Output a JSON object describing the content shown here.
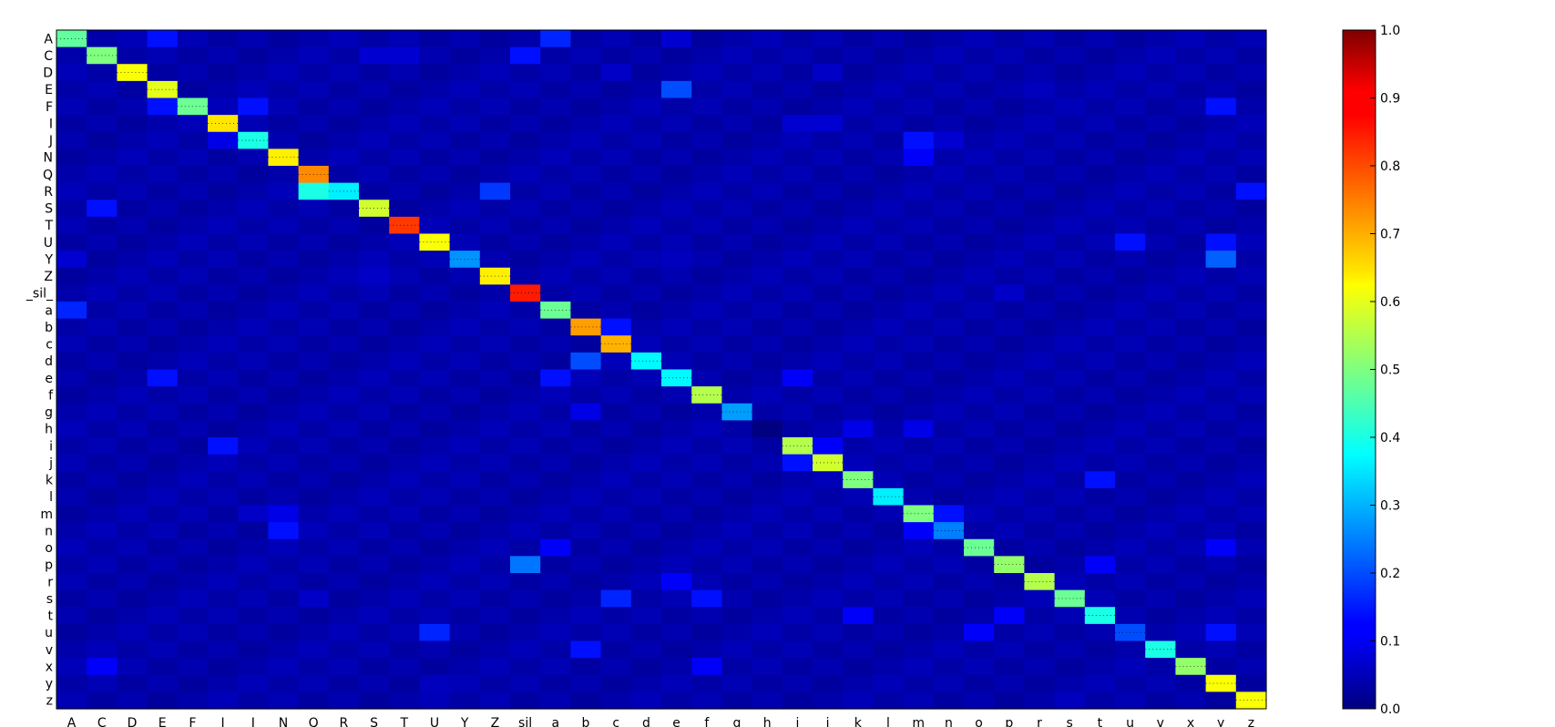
{
  "chart_data": {
    "type": "heatmap",
    "title": "",
    "xlabel": "",
    "ylabel": "",
    "labels": [
      "A",
      "C",
      "D",
      "E",
      "F",
      "I",
      "J",
      "N",
      "Q",
      "R",
      "S",
      "T",
      "U",
      "Y",
      "Z",
      "_sil_",
      "a",
      "b",
      "c",
      "d",
      "e",
      "f",
      "g",
      "h",
      "i",
      "j",
      "k",
      "l",
      "m",
      "n",
      "o",
      "p",
      "r",
      "s",
      "t",
      "u",
      "v",
      "x",
      "y",
      "z"
    ],
    "x_labels": [
      "A",
      "C",
      "D",
      "E",
      "F",
      "I",
      "J",
      "N",
      "Q",
      "R",
      "S",
      "T",
      "U",
      "Y",
      "Z",
      "_sil_",
      "a",
      "b",
      "c",
      "d",
      "e",
      "f",
      "g",
      "h",
      "i",
      "j",
      "k",
      "l",
      "m",
      "n",
      "o",
      "p",
      "r",
      "s",
      "t",
      "u",
      "v",
      "x",
      "y",
      "z"
    ],
    "diagonal": [
      0.47,
      0.5,
      0.62,
      0.6,
      0.48,
      0.65,
      0.4,
      0.64,
      0.74,
      0.36,
      0.58,
      0.82,
      0.62,
      0.27,
      0.64,
      0.85,
      0.48,
      0.72,
      0.7,
      0.37,
      0.37,
      0.55,
      0.28,
      0.0,
      0.55,
      0.58,
      0.5,
      0.36,
      0.5,
      0.25,
      0.48,
      0.52,
      0.55,
      0.48,
      0.4,
      0.2,
      0.4,
      0.52,
      0.62,
      0.62
    ],
    "off_diagonal": [
      {
        "row": "A",
        "col": "E",
        "value": 0.14
      },
      {
        "row": "A",
        "col": "a",
        "value": 0.16
      },
      {
        "row": "A",
        "col": "e",
        "value": 0.08
      },
      {
        "row": "C",
        "col": "_sil_",
        "value": 0.14
      },
      {
        "row": "C",
        "col": "S",
        "value": 0.08
      },
      {
        "row": "C",
        "col": "T",
        "value": 0.08
      },
      {
        "row": "D",
        "col": "c",
        "value": 0.07
      },
      {
        "row": "D",
        "col": "j",
        "value": 0.07
      },
      {
        "row": "E",
        "col": "e",
        "value": 0.2
      },
      {
        "row": "E",
        "col": "r",
        "value": 0.06
      },
      {
        "row": "F",
        "col": "E",
        "value": 0.14
      },
      {
        "row": "F",
        "col": "J",
        "value": 0.14
      },
      {
        "row": "F",
        "col": "y",
        "value": 0.14
      },
      {
        "row": "I",
        "col": "i",
        "value": 0.08
      },
      {
        "row": "I",
        "col": "j",
        "value": 0.08
      },
      {
        "row": "J",
        "col": "I",
        "value": 0.1
      },
      {
        "row": "J",
        "col": "m",
        "value": 0.14
      },
      {
        "row": "J",
        "col": "n",
        "value": 0.08
      },
      {
        "row": "N",
        "col": "m",
        "value": 0.12
      },
      {
        "row": "R",
        "col": "Q",
        "value": 0.4
      },
      {
        "row": "R",
        "col": "Z",
        "value": 0.18
      },
      {
        "row": "R",
        "col": "z",
        "value": 0.14
      },
      {
        "row": "S",
        "col": "C",
        "value": 0.14
      },
      {
        "row": "U",
        "col": "u",
        "value": 0.14
      },
      {
        "row": "U",
        "col": "y",
        "value": 0.14
      },
      {
        "row": "Y",
        "col": "A",
        "value": 0.08
      },
      {
        "row": "Y",
        "col": "e",
        "value": 0.06
      },
      {
        "row": "Y",
        "col": "y",
        "value": 0.22
      },
      {
        "row": "Z",
        "col": "S",
        "value": 0.07
      },
      {
        "row": "_sil_",
        "col": "p",
        "value": 0.07
      },
      {
        "row": "a",
        "col": "A",
        "value": 0.16
      },
      {
        "row": "b",
        "col": "c",
        "value": 0.14
      },
      {
        "row": "d",
        "col": "b",
        "value": 0.2
      },
      {
        "row": "e",
        "col": "E",
        "value": 0.14
      },
      {
        "row": "e",
        "col": "a",
        "value": 0.14
      },
      {
        "row": "e",
        "col": "i",
        "value": 0.12
      },
      {
        "row": "g",
        "col": "b",
        "value": 0.1
      },
      {
        "row": "h",
        "col": "k",
        "value": 0.1
      },
      {
        "row": "h",
        "col": "m",
        "value": 0.1
      },
      {
        "row": "i",
        "col": "I",
        "value": 0.14
      },
      {
        "row": "i",
        "col": "j",
        "value": 0.12
      },
      {
        "row": "j",
        "col": "i",
        "value": 0.14
      },
      {
        "row": "k",
        "col": "t",
        "value": 0.14
      },
      {
        "row": "m",
        "col": "n",
        "value": 0.14
      },
      {
        "row": "m",
        "col": "N",
        "value": 0.1
      },
      {
        "row": "m",
        "col": "J",
        "value": 0.07
      },
      {
        "row": "n",
        "col": "m",
        "value": 0.12
      },
      {
        "row": "n",
        "col": "N",
        "value": 0.14
      },
      {
        "row": "o",
        "col": "a",
        "value": 0.12
      },
      {
        "row": "o",
        "col": "y",
        "value": 0.12
      },
      {
        "row": "p",
        "col": "_sil_",
        "value": 0.24
      },
      {
        "row": "p",
        "col": "t",
        "value": 0.12
      },
      {
        "row": "r",
        "col": "e",
        "value": 0.12
      },
      {
        "row": "s",
        "col": "c",
        "value": 0.16
      },
      {
        "row": "s",
        "col": "f",
        "value": 0.14
      },
      {
        "row": "s",
        "col": "Q",
        "value": 0.07
      },
      {
        "row": "t",
        "col": "k",
        "value": 0.12
      },
      {
        "row": "t",
        "col": "p",
        "value": 0.12
      },
      {
        "row": "u",
        "col": "U",
        "value": 0.16
      },
      {
        "row": "u",
        "col": "o",
        "value": 0.12
      },
      {
        "row": "u",
        "col": "y",
        "value": 0.14
      },
      {
        "row": "v",
        "col": "b",
        "value": 0.14
      },
      {
        "row": "x",
        "col": "C",
        "value": 0.12
      },
      {
        "row": "x",
        "col": "f",
        "value": 0.12
      },
      {
        "row": "y",
        "col": "U",
        "value": 0.06
      },
      {
        "row": "z",
        "col": "s",
        "value": 0.06
      }
    ],
    "background_value": 0.03,
    "colorbar": {
      "colormap": "jet",
      "min": 0.0,
      "max": 1.0,
      "ticks": [
        "0.0",
        "0.1",
        "0.2",
        "0.3",
        "0.4",
        "0.5",
        "0.6",
        "0.7",
        "0.8",
        "0.9",
        "1.0"
      ]
    },
    "grid": false,
    "legend": "none"
  }
}
